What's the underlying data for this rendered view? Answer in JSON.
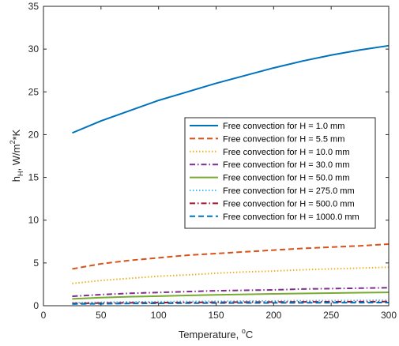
{
  "chart_data": {
    "type": "line",
    "title": "",
    "xlabel": "Temperature, ",
    "xlabel_sup": "o",
    "xlabel_tail": "C",
    "ylabel": "h",
    "ylabel_sub": "H",
    "ylabel_mid": ", W/m",
    "ylabel_sup": "2",
    "ylabel_tail": "*K",
    "xlim": [
      0,
      300
    ],
    "ylim": [
      0,
      35
    ],
    "xticks": [
      "0",
      "50",
      "100",
      "150",
      "200",
      "250",
      "300"
    ],
    "yticks": [
      "0",
      "5",
      "10",
      "15",
      "20",
      "25",
      "30",
      "35"
    ],
    "grid": false,
    "legend_position": "center-right",
    "x": [
      25,
      50,
      75,
      100,
      125,
      150,
      175,
      200,
      225,
      250,
      275,
      300
    ],
    "series": [
      {
        "name": "Free convection for H = 1.0 mm",
        "color": "#0072BD",
        "style": "solid",
        "values": [
          20.2,
          21.6,
          22.8,
          24.0,
          25.0,
          26.0,
          26.9,
          27.8,
          28.6,
          29.3,
          29.9,
          30.4
        ]
      },
      {
        "name": "Free convection for H = 5.5 mm",
        "color": "#D95319",
        "style": "dashed",
        "values": [
          4.3,
          4.9,
          5.3,
          5.6,
          5.9,
          6.1,
          6.3,
          6.5,
          6.7,
          6.85,
          7.0,
          7.2
        ]
      },
      {
        "name": "Free convection for H = 10.0 mm",
        "color": "#EDB120",
        "style": "dotted",
        "values": [
          2.6,
          2.95,
          3.2,
          3.45,
          3.6,
          3.8,
          3.95,
          4.05,
          4.2,
          4.3,
          4.4,
          4.5
        ]
      },
      {
        "name": "Free convection for H = 30.0 mm",
        "color": "#7E2F8E",
        "style": "dashdot",
        "values": [
          1.1,
          1.3,
          1.45,
          1.55,
          1.65,
          1.75,
          1.8,
          1.85,
          1.95,
          2.0,
          2.05,
          2.1
        ]
      },
      {
        "name": "Free convection for H = 50.0 mm",
        "color": "#77AC30",
        "style": "solid",
        "values": [
          0.8,
          0.95,
          1.05,
          1.12,
          1.2,
          1.27,
          1.33,
          1.38,
          1.43,
          1.48,
          1.52,
          1.56
        ]
      },
      {
        "name": "Free convection for H = 275.0 mm",
        "color": "#4DBEEE",
        "style": "dotted",
        "values": [
          0.35,
          0.4,
          0.45,
          0.48,
          0.5,
          0.52,
          0.55,
          0.57,
          0.59,
          0.6,
          0.62,
          0.64
        ]
      },
      {
        "name": "Free convection for H = 500.0 mm",
        "color": "#A2142F",
        "style": "dashdot",
        "values": [
          0.27,
          0.31,
          0.34,
          0.36,
          0.38,
          0.4,
          0.42,
          0.43,
          0.45,
          0.46,
          0.47,
          0.48
        ]
      },
      {
        "name": "Free convection for H = 1000.0 mm",
        "color": "#0072BD",
        "style": "dashed",
        "values": [
          0.2,
          0.23,
          0.26,
          0.28,
          0.3,
          0.31,
          0.32,
          0.33,
          0.34,
          0.35,
          0.36,
          0.37
        ]
      }
    ]
  }
}
